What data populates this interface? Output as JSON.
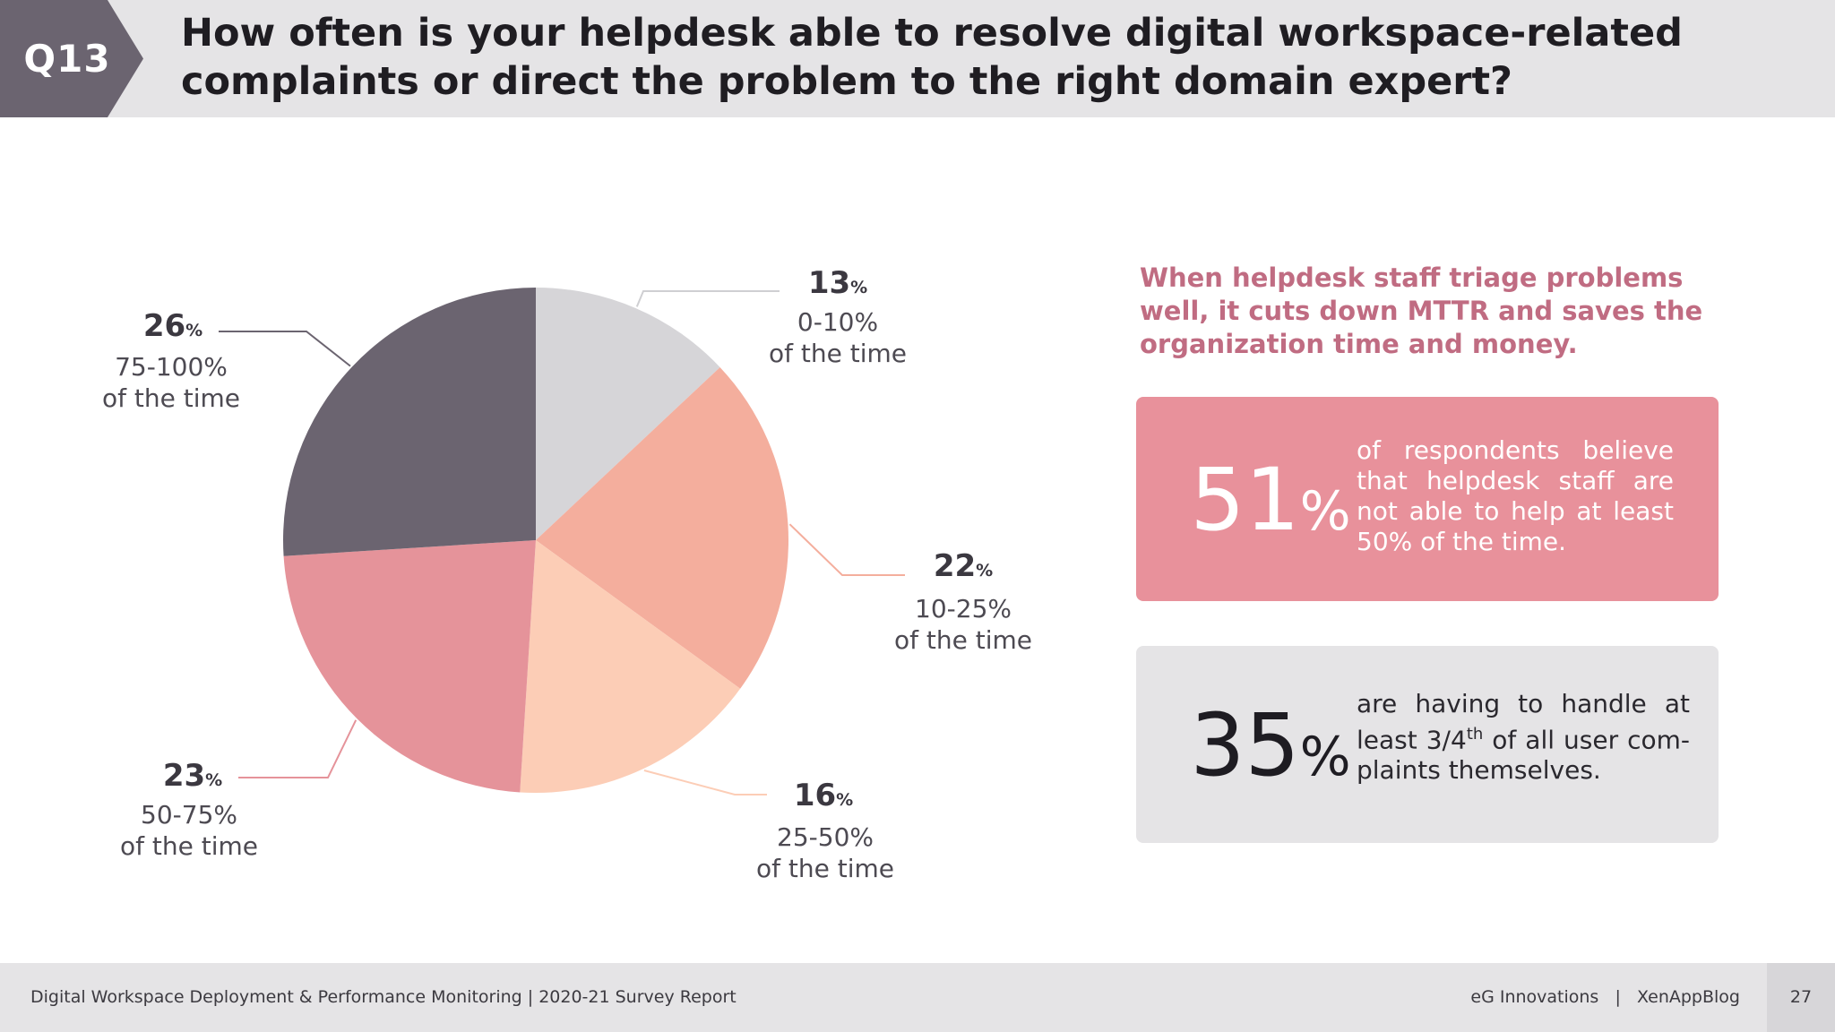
{
  "header": {
    "question_label": "Q13",
    "title": "How often is your helpdesk able to resolve digital workspace-related complaints or direct the problem to the right domain expert?"
  },
  "colors": {
    "header_bg": "#e5e4e6",
    "badge": "#6b6470",
    "accent_pink": "#e8919b",
    "insight_text": "#c06c82"
  },
  "chart_data": {
    "type": "pie",
    "title": "How often is your helpdesk able to resolve digital workspace-related complaints or direct the problem to the right domain expert?",
    "start": "12 o'clock, clockwise",
    "slices": [
      {
        "value": 13,
        "pct_label": "13",
        "pct_sign": "%",
        "label": "0-10%",
        "sublabel": "of the time",
        "color": "#d6d5d8"
      },
      {
        "value": 22,
        "pct_label": "22",
        "pct_sign": "%",
        "label": "10-25%",
        "sublabel": "of the time",
        "color": "#f4ae9d"
      },
      {
        "value": 16,
        "pct_label": "16",
        "pct_sign": "%",
        "label": "25-50%",
        "sublabel": "of the time",
        "color": "#fccdb6"
      },
      {
        "value": 23,
        "pct_label": "23",
        "pct_sign": "%",
        "label": "50-75%",
        "sublabel": "of the time",
        "color": "#e5939a"
      },
      {
        "value": 26,
        "pct_label": "26",
        "pct_sign": "%",
        "label": "75-100%",
        "sublabel": "of the time",
        "color": "#6b6470"
      }
    ]
  },
  "insight": "When helpdesk staff triage problems well, it cuts down MTTR and saves the organization time and money.",
  "stats": [
    {
      "value": "51",
      "sign": "%",
      "text": "of respondents believe that helpdesk staff are not able to help at least 50% of the time."
    },
    {
      "value": "35",
      "sign": "%",
      "text_before": "are having to handle at least 3/4",
      "sup": "th",
      "text_after": " of all user com-plaints themselves."
    }
  ],
  "footer": {
    "left": "Digital Workspace Deployment & Performance Monitoring | 2020-21 Survey Report",
    "right": "eG Innovations   |   XenAppBlog",
    "page_number": "27"
  }
}
